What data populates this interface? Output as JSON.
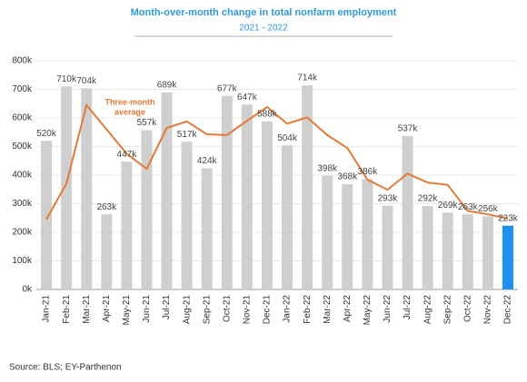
{
  "chart_data": {
    "type": "bar",
    "title": "Month-over-month  change in total nonfarm employment",
    "subtitle": "2021 - 2022",
    "source": "Source: BLS; EY-Parthenon",
    "categories": [
      "Jan-21",
      "Feb-21",
      "Mar-21",
      "Apr-21",
      "May-21",
      "Jun-21",
      "Jul-21",
      "Aug-21",
      "Sep-21",
      "Oct-21",
      "Nov-21",
      "Dec-21",
      "Jan-22",
      "Feb-22",
      "Mar-22",
      "Apr-22",
      "May-22",
      "Jun-22",
      "Jul-22",
      "Aug-22",
      "Sep-22",
      "Oct-22",
      "Nov-22",
      "Dec-22"
    ],
    "values": [
      520,
      710,
      704,
      263,
      447,
      557,
      689,
      517,
      424,
      677,
      647,
      588,
      504,
      714,
      398,
      368,
      386,
      293,
      537,
      292,
      269,
      263,
      256,
      223
    ],
    "value_labels": [
      "520k",
      "710k",
      "704k",
      "263k",
      "447k",
      "557k",
      "689k",
      "517k",
      "424k",
      "677k",
      "647k",
      "588k",
      "504k",
      "714k",
      "398k",
      "368k",
      "386k",
      "293k",
      "537k",
      "292k",
      "269k",
      "263k",
      "256k",
      "223k"
    ],
    "colors": [
      "#d0cfcf",
      "#d0cfcf",
      "#d0cfcf",
      "#d0cfcf",
      "#d0cfcf",
      "#d0cfcf",
      "#d0cfcf",
      "#d0cfcf",
      "#d0cfcf",
      "#d0cfcf",
      "#d0cfcf",
      "#d0cfcf",
      "#d0cfcf",
      "#d0cfcf",
      "#d0cfcf",
      "#d0cfcf",
      "#d0cfcf",
      "#d0cfcf",
      "#d0cfcf",
      "#d0cfcf",
      "#d0cfcf",
      "#d0cfcf",
      "#d0cfcf",
      "#1f8ff0"
    ],
    "line": {
      "label_lines": [
        "Three-month",
        "average"
      ],
      "color": "#e07b39",
      "values": [
        245,
        370,
        645,
        560,
        475,
        422,
        565,
        588,
        543,
        540,
        590,
        638,
        580,
        602,
        540,
        495,
        384,
        349,
        405,
        374,
        366,
        275,
        263,
        248
      ]
    },
    "ylim": [
      0,
      800
    ],
    "yticks": [
      {
        "value": 0,
        "label": "0k"
      },
      {
        "value": 100,
        "label": "100k"
      },
      {
        "value": 200,
        "label": "200k"
      },
      {
        "value": 300,
        "label": "300k"
      },
      {
        "value": 400,
        "label": "400k"
      },
      {
        "value": 500,
        "label": "500k"
      },
      {
        "value": 600,
        "label": "600k"
      },
      {
        "value": 700,
        "label": "700k"
      },
      {
        "value": 800,
        "label": "800k"
      }
    ],
    "grid": true
  }
}
